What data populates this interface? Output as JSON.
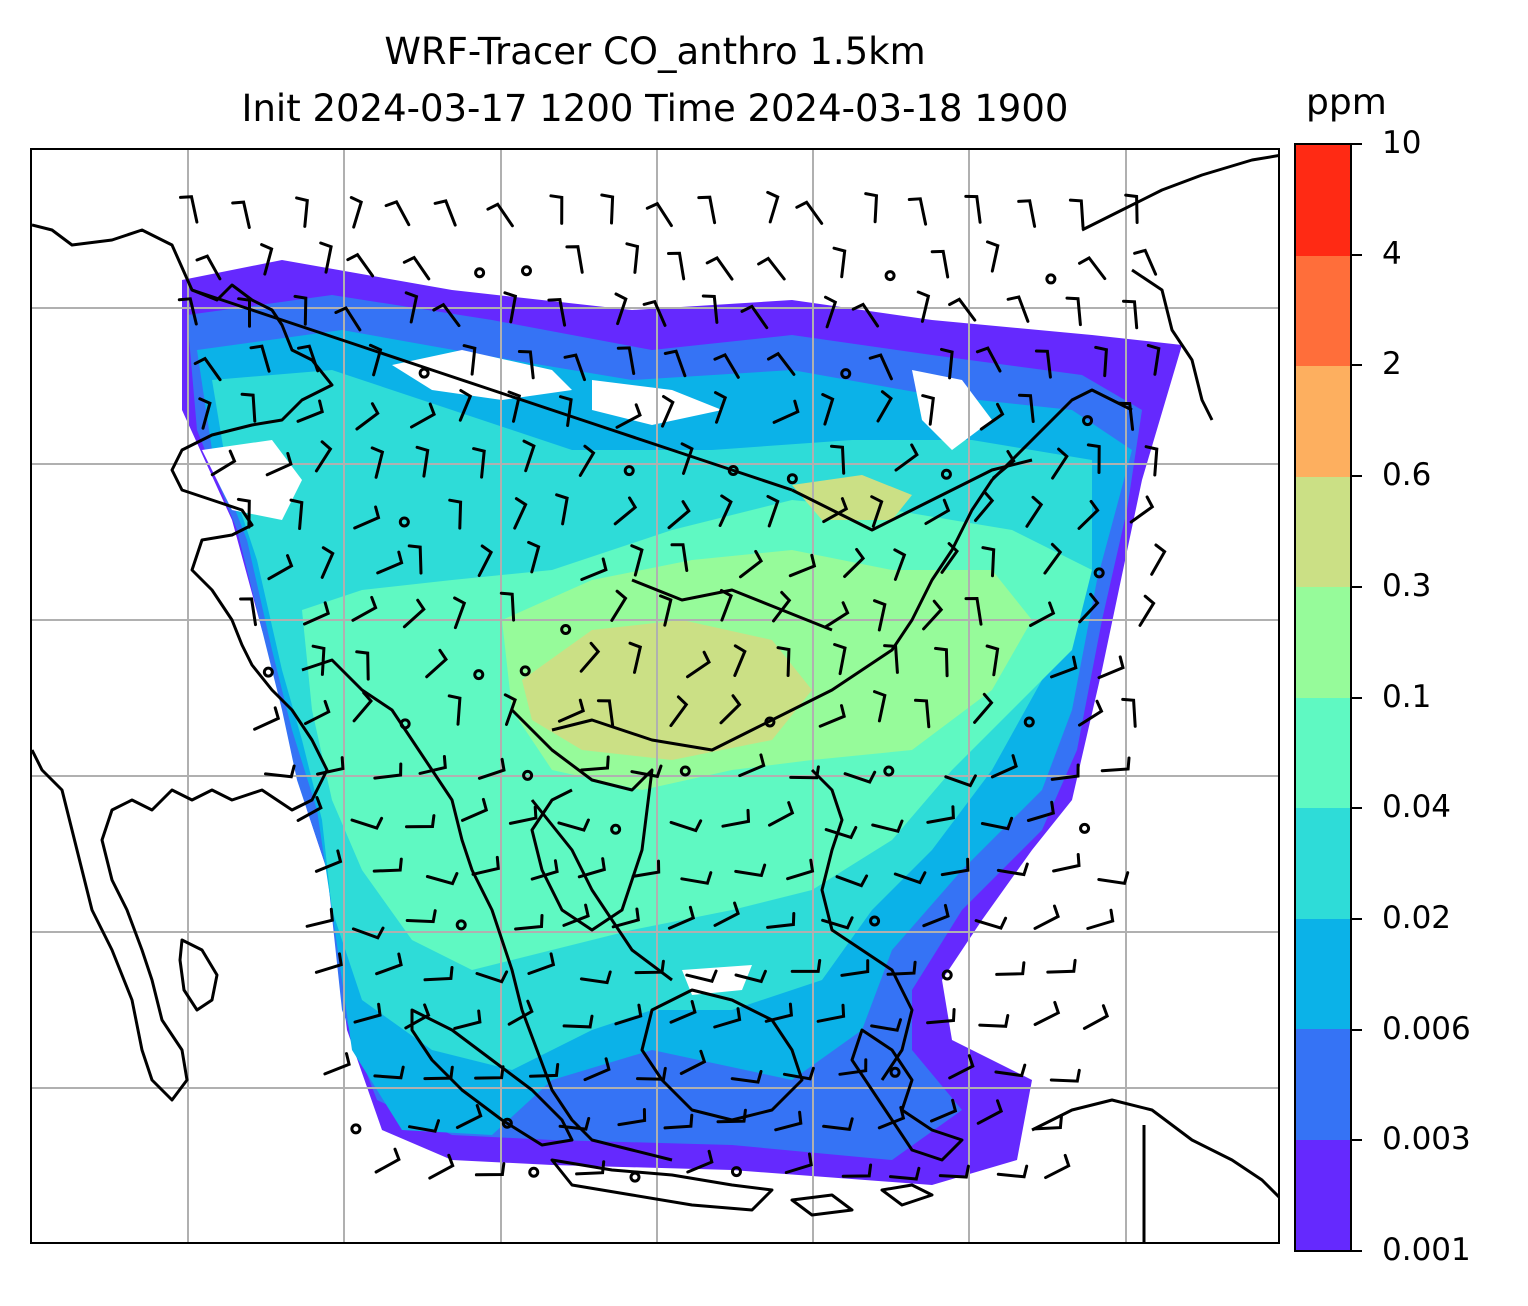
{
  "title": {
    "line1": "WRF-Tracer CO_anthro 1.5km",
    "line2": "Init 2024-03-17 1200 Time 2024-03-18 1900"
  },
  "colorbar": {
    "unit": "ppm",
    "ticks": [
      "10",
      "4",
      "2",
      "0.6",
      "0.3",
      "0.1",
      "0.04",
      "0.02",
      "0.006",
      "0.003",
      "0.001"
    ],
    "colors": [
      "#ff2a14",
      "#ff6e3a",
      "#fdaf5f",
      "#cbe085",
      "#96fb9a",
      "#5ff9c2",
      "#2edcd8",
      "#0bb2e8",
      "#3573f5",
      "#6529fe"
    ]
  },
  "map": {
    "field": "CO_anthro tracer concentration",
    "gridlines": true,
    "overlays": [
      "coastlines",
      "country borders",
      "wind barbs",
      "calm circles"
    ]
  }
}
